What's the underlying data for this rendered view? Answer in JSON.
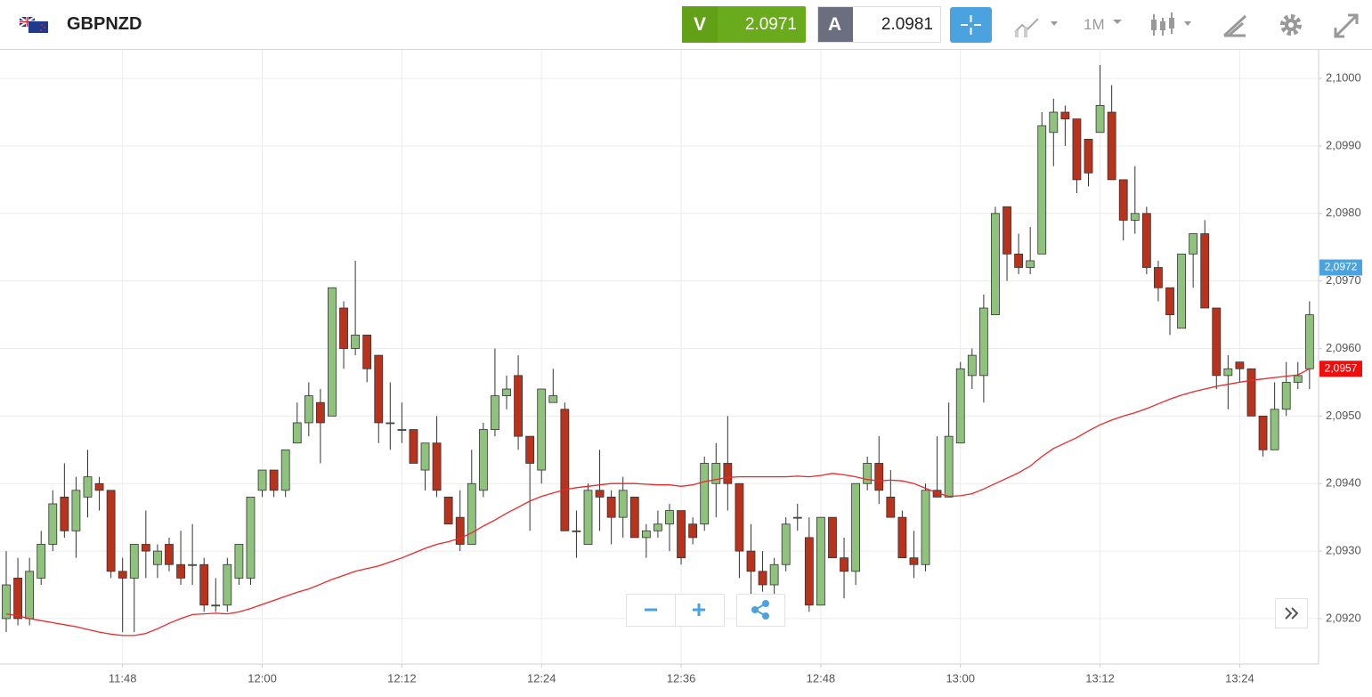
{
  "header": {
    "symbol": "GBPNZD",
    "sell_label": "V",
    "sell_price": "2.0971",
    "buy_label": "A",
    "buy_price": "2.0981",
    "timeframe": "1M"
  },
  "chart_data": {
    "type": "candlestick",
    "categories": [
      null,
      null,
      null,
      null,
      null,
      null,
      null,
      null,
      null,
      null,
      "11:48",
      null,
      null,
      null,
      null,
      null,
      null,
      null,
      null,
      null,
      null,
      null,
      "12:00",
      null,
      null,
      null,
      null,
      null,
      null,
      null,
      null,
      null,
      null,
      null,
      "12:12",
      null,
      null,
      null,
      null,
      null,
      null,
      null,
      null,
      null,
      null,
      null,
      "12:24",
      null,
      null,
      null,
      null,
      null,
      null,
      null,
      null,
      null,
      null,
      null,
      "12:36",
      null,
      null,
      null,
      null,
      null,
      null,
      null,
      null,
      null,
      null,
      null,
      "12:48",
      null,
      null,
      null,
      null,
      null,
      null,
      null,
      null,
      null,
      null,
      null,
      "13:00",
      null,
      null,
      null,
      null,
      null,
      null,
      null,
      null,
      null,
      null,
      null,
      "13:12",
      null,
      null,
      null,
      null,
      null,
      null,
      null,
      null,
      null,
      null,
      null,
      "13:24",
      null,
      null,
      null,
      null,
      null,
      null
    ],
    "open": [
      2.092,
      2.0926,
      2.092,
      2.0926,
      2.0931,
      2.0938,
      2.0933,
      2.0938,
      2.094,
      2.0939,
      2.0927,
      2.0926,
      2.0931,
      2.0928,
      2.0931,
      2.0928,
      2.0928,
      2.0928,
      2.0922,
      2.0922,
      2.0926,
      2.0926,
      2.0939,
      2.0942,
      2.0939,
      2.0946,
      2.0949,
      2.0952,
      2.095,
      2.0966,
      2.096,
      2.0962,
      2.0959,
      2.0949,
      2.0948,
      2.0948,
      2.0942,
      2.0946,
      2.0938,
      2.0935,
      2.0931,
      2.0939,
      2.0948,
      2.0953,
      2.0956,
      2.0947,
      2.0942,
      2.0952,
      2.0951,
      2.0933,
      2.0931,
      2.0939,
      2.0938,
      2.0935,
      2.0938,
      2.0932,
      2.0933,
      2.0934,
      2.0936,
      2.0934,
      2.0934,
      2.094,
      2.0943,
      2.094,
      2.093,
      2.0927,
      2.0925,
      2.0928,
      2.0935,
      2.0932,
      2.0922,
      2.0935,
      2.0929,
      2.0927,
      2.094,
      2.0943,
      2.0938,
      2.0935,
      2.0929,
      2.0928,
      2.0939,
      2.0938,
      2.0946,
      2.0956,
      2.0956,
      2.0965,
      2.0981,
      2.0974,
      2.0972,
      2.0974,
      2.0992,
      2.0995,
      2.0994,
      2.0991,
      2.0992,
      2.0995,
      2.0985,
      2.0979,
      2.098,
      2.0972,
      2.0969,
      2.0963,
      2.0974,
      2.0977,
      2.0966,
      2.0956,
      2.0958,
      2.0957,
      2.095,
      2.0945,
      2.0951,
      2.0955,
      2.0957
    ],
    "high": [
      2.093,
      2.0929,
      2.0929,
      2.0933,
      2.0939,
      2.0943,
      2.0941,
      2.0945,
      2.0941,
      2.0939,
      2.0929,
      2.0931,
      2.0936,
      2.0931,
      2.0932,
      2.0933,
      2.0934,
      2.0929,
      2.0926,
      2.0929,
      2.0931,
      2.0938,
      2.0942,
      2.0942,
      2.0945,
      2.0952,
      2.0955,
      2.0954,
      2.0969,
      2.0967,
      2.0973,
      2.0962,
      2.0959,
      2.0955,
      2.0952,
      2.0948,
      2.0946,
      2.095,
      2.0938,
      2.0939,
      2.0945,
      2.0949,
      2.096,
      2.0956,
      2.0959,
      2.0947,
      2.0954,
      2.0957,
      2.0952,
      2.0936,
      2.094,
      2.0945,
      2.0939,
      2.0941,
      2.0938,
      2.0934,
      2.0936,
      2.0937,
      2.0936,
      2.0935,
      2.0944,
      2.0946,
      2.095,
      2.094,
      2.0934,
      2.093,
      2.0929,
      2.0935,
      2.0937,
      2.0935,
      2.0935,
      2.0935,
      2.0932,
      2.094,
      2.0944,
      2.0947,
      2.0942,
      2.0936,
      2.0933,
      2.094,
      2.0947,
      2.0952,
      2.0958,
      2.096,
      2.0968,
      2.0981,
      2.0981,
      2.0977,
      2.0978,
      2.0995,
      2.0997,
      2.0996,
      2.0994,
      2.0991,
      2.1002,
      2.0999,
      2.0985,
      2.0987,
      2.0981,
      2.0973,
      2.0969,
      2.0974,
      2.0977,
      2.0979,
      2.0966,
      2.0959,
      2.0958,
      2.0957,
      2.095,
      2.0955,
      2.0958,
      2.0958,
      2.0967
    ],
    "low": [
      2.0918,
      2.0919,
      2.0919,
      2.0925,
      2.093,
      2.0932,
      2.0929,
      2.0935,
      2.0936,
      2.0926,
      2.0918,
      2.0918,
      2.0926,
      2.0926,
      2.0927,
      2.0925,
      2.0925,
      2.0921,
      2.0921,
      2.0921,
      2.0925,
      2.0925,
      2.0938,
      2.0938,
      2.0938,
      2.0946,
      2.0947,
      2.0943,
      2.095,
      2.0957,
      2.0959,
      2.0955,
      2.0946,
      2.0945,
      2.0946,
      2.0943,
      2.0939,
      2.0938,
      2.0934,
      2.093,
      2.0931,
      2.0938,
      2.0947,
      2.0951,
      2.0945,
      2.0933,
      2.094,
      2.0952,
      2.0933,
      2.0929,
      2.0931,
      2.0933,
      2.0931,
      2.0932,
      2.0932,
      2.0929,
      2.0932,
      2.093,
      2.0928,
      2.0931,
      2.0933,
      2.0935,
      2.0936,
      2.0926,
      2.0923,
      2.0924,
      2.0923,
      2.0927,
      2.0933,
      2.0921,
      2.0922,
      2.0929,
      2.0923,
      2.0925,
      2.0939,
      2.0937,
      2.0935,
      2.0929,
      2.0926,
      2.0927,
      2.0938,
      2.0938,
      2.0946,
      2.0954,
      2.0952,
      2.0965,
      2.097,
      2.0971,
      2.0971,
      2.0974,
      2.0987,
      2.099,
      2.0983,
      2.0984,
      2.0992,
      2.0985,
      2.0976,
      2.0977,
      2.0971,
      2.0967,
      2.0962,
      2.0963,
      2.0969,
      2.0966,
      2.0954,
      2.0951,
      2.0955,
      2.095,
      2.0944,
      2.0945,
      2.095,
      2.0954,
      2.0954
    ],
    "close": [
      2.0925,
      2.092,
      2.0927,
      2.0931,
      2.0937,
      2.0933,
      2.0939,
      2.0941,
      2.0939,
      2.0927,
      2.0926,
      2.0931,
      2.093,
      2.093,
      2.0928,
      2.0926,
      2.0928,
      2.0922,
      2.0922,
      2.0928,
      2.0931,
      2.0938,
      2.0942,
      2.0939,
      2.0945,
      2.0949,
      2.0953,
      2.0949,
      2.0969,
      2.096,
      2.0962,
      2.0957,
      2.0949,
      2.0949,
      2.0948,
      2.0943,
      2.0946,
      2.0939,
      2.0934,
      2.0931,
      2.094,
      2.0948,
      2.0953,
      2.0954,
      2.0947,
      2.0943,
      2.0954,
      2.0953,
      2.0933,
      2.0933,
      2.0939,
      2.0938,
      2.0935,
      2.0939,
      2.0932,
      2.0933,
      2.0934,
      2.0936,
      2.0929,
      2.0932,
      2.0943,
      2.0943,
      2.094,
      2.093,
      2.0927,
      2.0925,
      2.0928,
      2.0934,
      2.0935,
      2.0922,
      2.0935,
      2.0929,
      2.0927,
      2.094,
      2.0943,
      2.0939,
      2.0935,
      2.0929,
      2.0928,
      2.0939,
      2.0938,
      2.0947,
      2.0957,
      2.0959,
      2.0966,
      2.098,
      2.0974,
      2.0972,
      2.0973,
      2.0993,
      2.0995,
      2.0994,
      2.0985,
      2.0986,
      2.0996,
      2.0985,
      2.0979,
      2.098,
      2.0972,
      2.0969,
      2.0965,
      2.0974,
      2.0977,
      2.0966,
      2.0956,
      2.0957,
      2.0957,
      2.095,
      2.0945,
      2.0951,
      2.0955,
      2.0956,
      2.0965
    ],
    "up_color": "#8fc27c",
    "down_color": "#b8321c",
    "ma": {
      "color": "#e8292b",
      "values": [
        2.09207,
        2.09204,
        2.092,
        2.09197,
        2.09194,
        2.09191,
        2.09188,
        2.09184,
        2.0918,
        2.09177,
        2.09175,
        2.09175,
        2.09178,
        2.09185,
        2.09193,
        2.092,
        2.09206,
        2.09207,
        2.09208,
        2.09207,
        2.0921,
        2.09215,
        2.09221,
        2.09227,
        2.09233,
        2.09239,
        2.09244,
        2.09251,
        2.09258,
        2.09264,
        2.0927,
        2.09274,
        2.09278,
        2.09284,
        2.0929,
        2.09297,
        2.09304,
        2.0931,
        2.09314,
        2.09319,
        2.09327,
        2.09337,
        2.09346,
        2.09356,
        2.09365,
        2.09374,
        2.09381,
        2.09386,
        2.09391,
        2.09394,
        2.09396,
        2.09398,
        2.094,
        2.094,
        2.094,
        2.09399,
        2.09398,
        2.09398,
        2.09396,
        2.09398,
        2.09403,
        2.09406,
        2.09409,
        2.0941,
        2.0941,
        2.0941,
        2.0941,
        2.0941,
        2.09411,
        2.0941,
        2.09412,
        2.09415,
        2.09413,
        2.0941,
        2.09406,
        2.09404,
        2.09405,
        2.09404,
        2.094,
        2.09393,
        2.09386,
        2.09381,
        2.09382,
        2.09385,
        2.09392,
        2.094,
        2.09408,
        2.09416,
        2.09426,
        2.0944,
        2.09452,
        2.0946,
        2.09468,
        2.09478,
        2.09487,
        2.09494,
        2.095,
        2.09505,
        2.09511,
        2.09518,
        2.09525,
        2.09531,
        2.09536,
        2.0954,
        2.09544,
        2.09547,
        2.0955,
        2.09553,
        2.09555,
        2.09557,
        2.09559,
        2.09561,
        2.0957
      ]
    },
    "ylim": [
      2.09134,
      2.10041
    ],
    "yticks": [
      {
        "value": 2.092,
        "label": "2,0920"
      },
      {
        "value": 2.093,
        "label": "2,0930"
      },
      {
        "value": 2.094,
        "label": "2,0940"
      },
      {
        "value": 2.095,
        "label": "2,0950"
      },
      {
        "value": 2.096,
        "label": "2,0960"
      },
      {
        "value": 2.097,
        "label": "2,0970"
      },
      {
        "value": 2.098,
        "label": "2,0980"
      },
      {
        "value": 2.099,
        "label": "2,0990"
      },
      {
        "value": 2.1,
        "label": "2,1000"
      }
    ],
    "price_labels": [
      {
        "value": 2.0972,
        "label": "2,0972",
        "color": "#4aa3df"
      },
      {
        "value": 2.0957,
        "label": "2,0957",
        "color": "#f20c0c"
      }
    ],
    "grid": true
  }
}
